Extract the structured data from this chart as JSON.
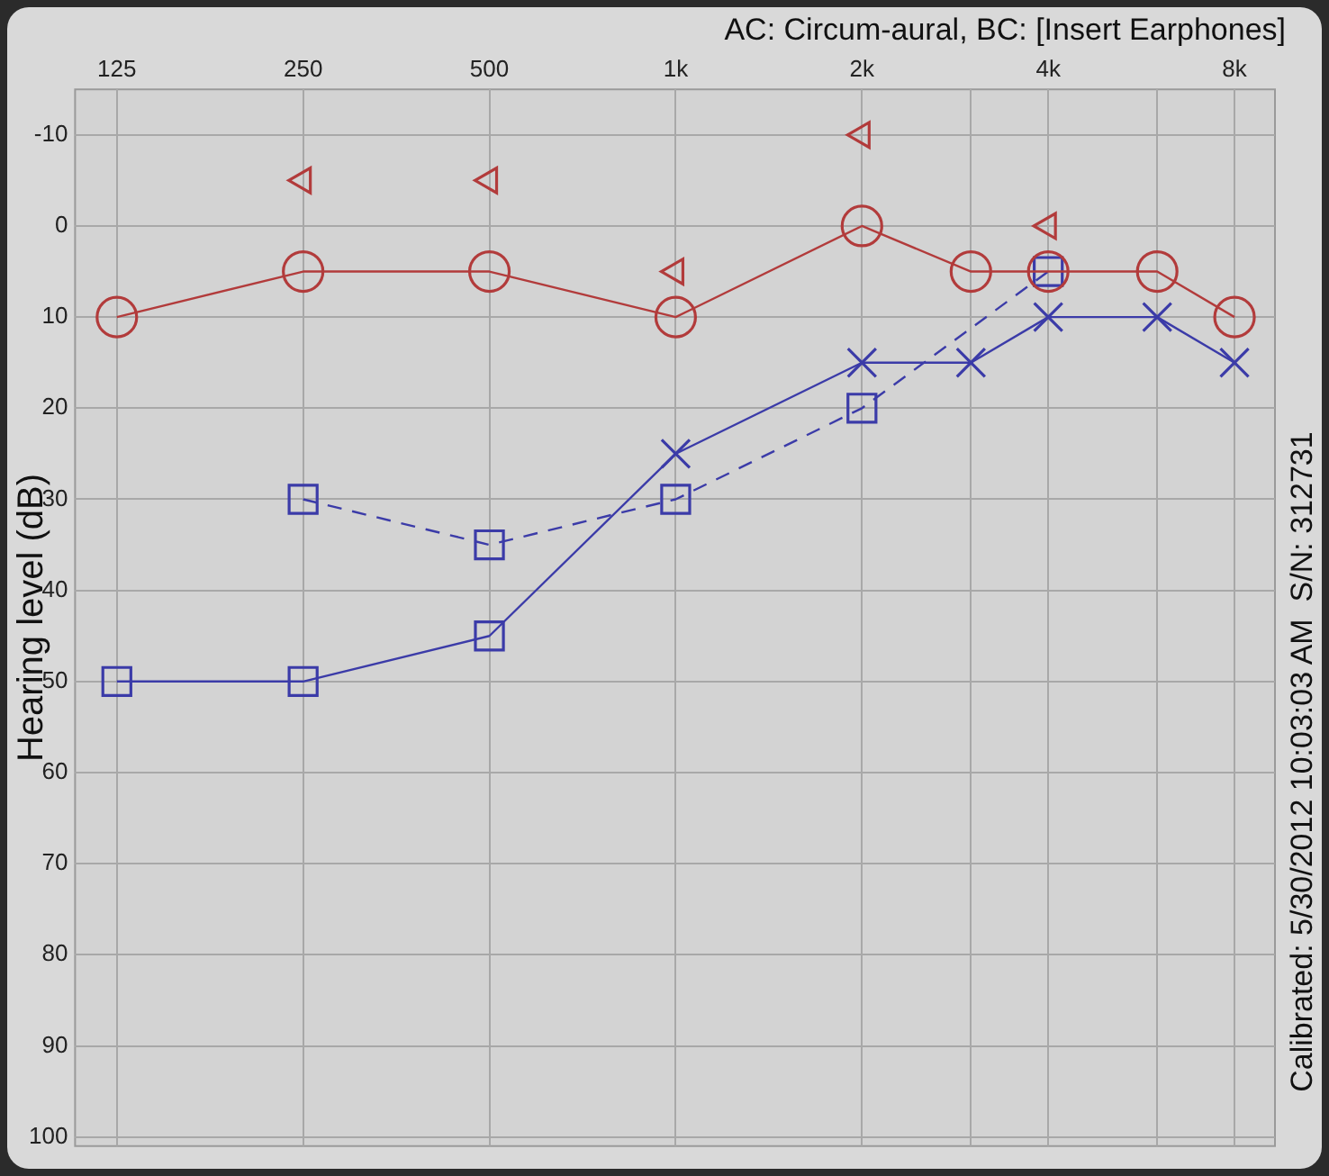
{
  "chart_data": {
    "type": "line",
    "ylabel": "Hearing level (dB)",
    "annotations": [
      "AC: Circum-aural, BC: [Insert Earphones]",
      "Calibrated: 5/30/2012 10:03:03 AM  S/N: 312731"
    ],
    "x": [
      125,
      250,
      500,
      1000,
      2000,
      3000,
      4000,
      6000,
      8000
    ],
    "xlim": [
      107,
      9300
    ],
    "xticks": [
      125,
      250,
      500,
      {
        "value": 1000,
        "label": "1k"
      },
      {
        "value": 2000,
        "label": "2k"
      },
      {
        "value": 3000,
        "label": null
      },
      {
        "value": 4000,
        "label": "4k"
      },
      {
        "value": 6000,
        "label": null
      },
      {
        "value": 8000,
        "label": "8k"
      }
    ],
    "ylim": [
      101,
      -15
    ],
    "yticks": [
      -10,
      0,
      10,
      20,
      30,
      40,
      50,
      60,
      70,
      80,
      90,
      100
    ],
    "grid": true,
    "log": "x",
    "legend": false,
    "series": [
      {
        "color": "#b23b3b",
        "marker": "circle",
        "line_style": "solid",
        "values": [
          10,
          5,
          5,
          10,
          0,
          5,
          5,
          5,
          10
        ]
      },
      {
        "color": "#b23b3b",
        "type": "scatter",
        "marker": "triangle",
        "values": [
          null,
          -5,
          -5,
          5,
          -10,
          null,
          0,
          null,
          null
        ]
      },
      {
        "color": "#3b3ba8",
        "marker": [
          "square",
          "square",
          "square",
          "cross",
          "cross",
          "cross",
          "cross",
          "cross",
          "cross"
        ],
        "line_style": "solid",
        "values": [
          50,
          50,
          45,
          25,
          15,
          15,
          10,
          10,
          15
        ]
      },
      {
        "color": "#3b3ba8",
        "marker": "square",
        "line_style": "dashed",
        "values": [
          null,
          30,
          35,
          30,
          20,
          null,
          5,
          null,
          null
        ]
      }
    ]
  }
}
